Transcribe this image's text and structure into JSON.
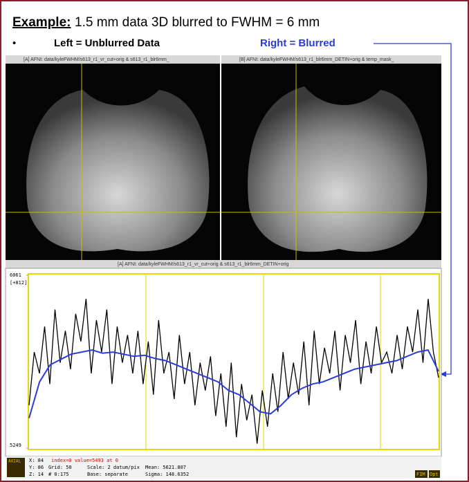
{
  "slide": {
    "title_bold": "Example:",
    "title_rest": "1.5 mm data 3D blurred to FWHM = 6 mm",
    "bullet": "•",
    "left_label": "Left = Unblurred Data",
    "right_label": "Right = Blurred"
  },
  "windows": {
    "left_title": "[A] AFNI: data/kyleFWHM/s613_r1_vr_cut+orig & s613_r1_blr6mm_",
    "right_title": "[B] AFNI: data/kyleFWHM/s613_r1_blr6mm_DETIN+orig & temp_mask_",
    "graph_title": "[A] AFNI: data/kyleFWHM/s613_r1_vr_cut+orig & s613_r1_blr6mm_DETIN+orig"
  },
  "status": {
    "x": "X: 84",
    "y": "Y: 86",
    "z": "Z: 14",
    "index": "index=0 value=5493 at 0",
    "grid": "Grid:   50",
    "count": "#   0:175",
    "scale": "Scale: 2 datum/pix",
    "base": "Base: separate",
    "mean": "Mean:   5621.807",
    "sigma": "Sigma:  148.6352",
    "view": "AXIAL",
    "fim": "FIM",
    "opt": "Opt"
  },
  "chart_data": {
    "type": "line",
    "ylim": [
      5249,
      6061
    ],
    "yticks": [
      5249,
      6061
    ],
    "range_label": "[+812]",
    "series": [
      {
        "color": "#000000",
        "values": [
          5450,
          5700,
          5600,
          5820,
          5550,
          5900,
          5650,
          5800,
          5620,
          5880,
          5750,
          5950,
          5600,
          5850,
          5700,
          5900,
          5550,
          5820,
          5650,
          5780,
          5600,
          5800,
          5550,
          5750,
          5500,
          5850,
          5600,
          5700,
          5480,
          5780,
          5550,
          5700,
          5450,
          5650,
          5520,
          5680,
          5400,
          5600,
          5350,
          5650,
          5300,
          5550,
          5380,
          5500,
          5270,
          5520,
          5350,
          5600,
          5420,
          5700,
          5480,
          5650,
          5500,
          5750,
          5450,
          5800,
          5550,
          5720,
          5600,
          5800,
          5520,
          5780,
          5650,
          5850,
          5550,
          5750,
          5600,
          5820,
          5650,
          5700,
          5600,
          5780,
          5620,
          5820,
          5700,
          5900,
          5650,
          5950,
          5700,
          5580
        ]
      },
      {
        "color": "#2a3bd6",
        "values": [
          5390,
          5560,
          5640,
          5665,
          5690,
          5700,
          5710,
          5695,
          5700,
          5690,
          5680,
          5685,
          5670,
          5660,
          5640,
          5620,
          5600,
          5580,
          5560,
          5520,
          5500,
          5460,
          5420,
          5410,
          5450,
          5500,
          5530,
          5550,
          5560,
          5580,
          5600,
          5620,
          5630,
          5640,
          5650,
          5660,
          5680,
          5700,
          5710,
          5610
        ]
      }
    ]
  }
}
